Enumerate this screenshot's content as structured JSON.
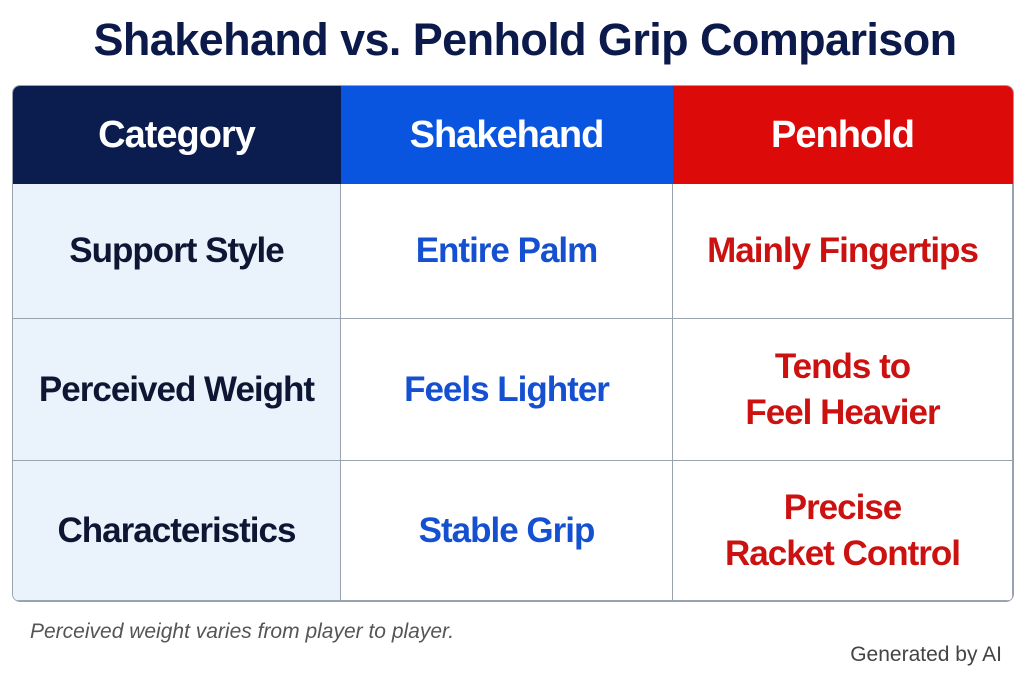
{
  "title": "Shakehand vs. Penhold Grip Comparison",
  "table": {
    "headers": [
      "Category",
      "Shakehand",
      "Penhold"
    ],
    "rows": [
      [
        "Support Style",
        "Entire Palm",
        "Mainly Fingertips"
      ],
      [
        "Perceived Weight",
        "Feels Lighter",
        [
          "Tends to",
          "Feel Heavier"
        ]
      ],
      [
        "Characteristics",
        "Stable Grip",
        [
          "Precise",
          "Racket Control"
        ]
      ]
    ]
  },
  "footnote": "Perceived weight varies from player to player.",
  "watermark": "Generated by AI"
}
